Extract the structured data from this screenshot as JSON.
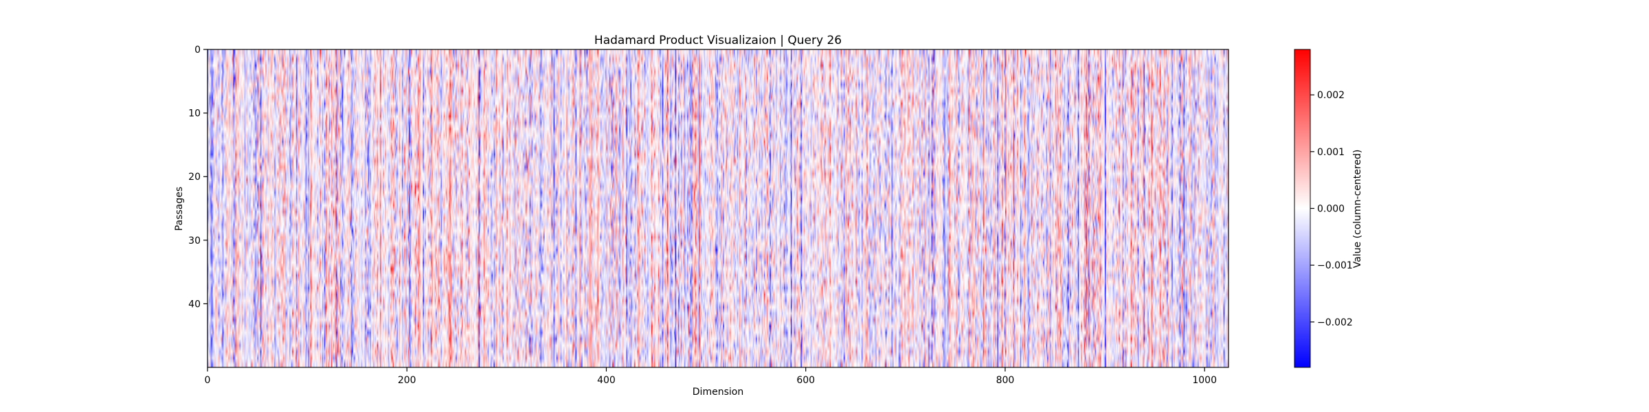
{
  "chart_data": {
    "type": "heatmap",
    "title": "Hadamard Product Visualizaion | Query 26",
    "xlabel": "Dimension",
    "ylabel": "Passages",
    "n_cols": 1024,
    "n_rows": 50,
    "xlim": [
      0,
      1024
    ],
    "ylim": [
      50,
      0
    ],
    "xticks": [
      0,
      200,
      400,
      600,
      800,
      1000
    ],
    "xtick_labels": [
      "0",
      "200",
      "400",
      "600",
      "800",
      "1000"
    ],
    "yticks": [
      0,
      10,
      20,
      30,
      40
    ],
    "ytick_labels": [
      "0",
      "10",
      "20",
      "30",
      "40"
    ],
    "colormap": "bwr",
    "colormap_colors": [
      "#0000ff",
      "#ffffff",
      "#ff0000"
    ],
    "value_range": [
      -0.0028,
      0.0028
    ],
    "colorbar": {
      "label": "Value (column-centered)",
      "ticks": [
        0.002,
        0.001,
        0.0,
        -0.001,
        -0.002
      ],
      "tick_labels": [
        "0.002",
        "0.001",
        "0.000",
        "−0.001",
        "−0.002"
      ]
    },
    "grid": false
  }
}
